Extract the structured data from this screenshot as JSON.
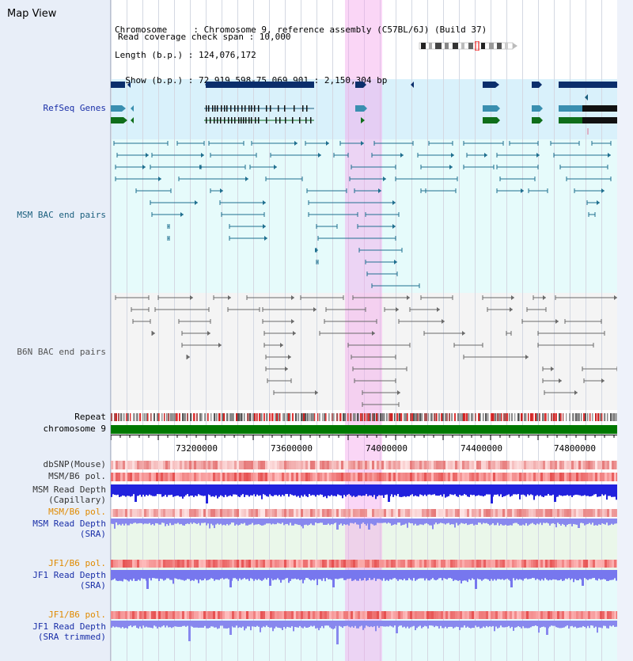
{
  "app_title": "Map View",
  "header": {
    "chromosome_line": "Chromosome     : Chromosome 9, reference assembly (C57BL/6J) (Build 37)",
    "length_line": "Length (b.p.) : 124,076,172",
    "show_line": "  Show (b.p.) : 72,919,598-75,069,901 : 2,150,304 bp",
    "coverage_line": "Read coverage check span : 10,000"
  },
  "tracks": {
    "refseq": "RefSeq Genes",
    "msm_bac": "MSM BAC end pairs",
    "b6n_bac": "B6N BAC end pairs",
    "repeat": "Repeat",
    "chromosome": "chromosome 9",
    "dbsnp": "dbSNP(Mouse)",
    "msm_b6_pol_1": "MSM/B6 pol.",
    "msm_read_depth_cap_1": "MSM Read Depth",
    "msm_read_depth_cap_2": "(Capillary)",
    "msm_b6_pol_2": "MSM/B6 pol.",
    "msm_read_depth_sra_1": "MSM Read Depth",
    "msm_read_depth_sra_2": "(SRA)",
    "jf1_b6_pol_1": "JF1/B6 pol.",
    "jf1_read_depth_1": "JF1 Read Depth",
    "jf1_read_depth_2": "(SRA)",
    "jf1_b6_pol_2": "JF1/B6 pol.",
    "jf1_trim_1": "JF1 Read Depth",
    "jf1_trim_2": "(SRA trimmed)"
  },
  "axis_ticks": [
    "73200000",
    "73600000",
    "74000000",
    "74400000",
    "74800000"
  ],
  "colors": {
    "refseq_bg": "#d9f1fb",
    "bac_msm_bg": "#e6fbfb",
    "bac_b6n_bg": "#f4f4f4",
    "highlight": "#f5a5eb",
    "gene_navy": "#0b2e6b",
    "gene_teal": "#3a8fb0",
    "gene_green": "#0f6e1a",
    "msm_line": "#1f6f8f",
    "b6n_line": "#6a6a6a",
    "depth_blue": "#2222dd",
    "depth_light": "#8888ee",
    "chromosome": "#007800"
  }
}
